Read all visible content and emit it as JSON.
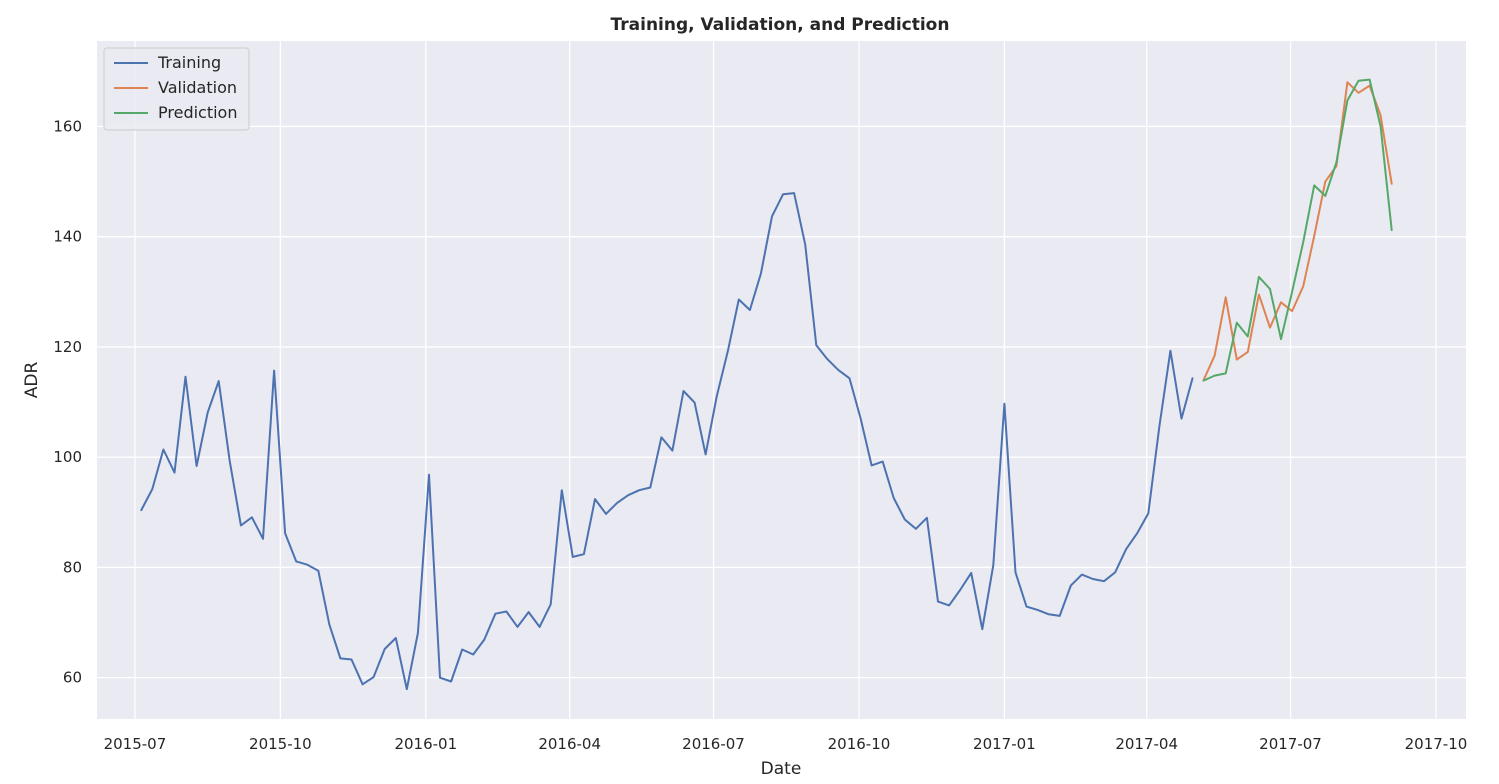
{
  "chart_data": {
    "type": "line",
    "title": "Training, Validation, and Prediction",
    "xlabel": "Date",
    "ylabel": "ADR",
    "x_axis_type": "date",
    "xlim": [
      "2015-06-07",
      "2017-10-20"
    ],
    "ylim": [
      52.5,
      175.5
    ],
    "x_ticks": [
      "2015-07",
      "2015-10",
      "2016-01",
      "2016-04",
      "2016-07",
      "2016-10",
      "2017-01",
      "2017-04",
      "2017-07",
      "2017-10"
    ],
    "x_tick_dates": [
      "2015-07-01",
      "2015-10-01",
      "2016-01-01",
      "2016-04-01",
      "2016-07-01",
      "2016-10-01",
      "2017-01-01",
      "2017-04-01",
      "2017-07-01",
      "2017-10-01"
    ],
    "y_ticks": [
      60,
      80,
      100,
      120,
      140,
      160
    ],
    "grid": true,
    "background": "#eaeaf2",
    "legend_position": "top-left",
    "series": [
      {
        "name": "Training",
        "color": "#4c72b0",
        "x": [
          "2015-07-05",
          "2015-07-12",
          "2015-07-19",
          "2015-07-26",
          "2015-08-02",
          "2015-08-09",
          "2015-08-16",
          "2015-08-23",
          "2015-08-30",
          "2015-09-06",
          "2015-09-13",
          "2015-09-20",
          "2015-09-27",
          "2015-10-04",
          "2015-10-11",
          "2015-10-18",
          "2015-10-25",
          "2015-11-01",
          "2015-11-08",
          "2015-11-15",
          "2015-11-22",
          "2015-11-29",
          "2015-12-06",
          "2015-12-13",
          "2015-12-20",
          "2015-12-27",
          "2016-01-03",
          "2016-01-10",
          "2016-01-17",
          "2016-01-24",
          "2016-01-31",
          "2016-02-07",
          "2016-02-14",
          "2016-02-21",
          "2016-02-28",
          "2016-03-06",
          "2016-03-13",
          "2016-03-20",
          "2016-03-27",
          "2016-04-03",
          "2016-04-10",
          "2016-04-17",
          "2016-04-24",
          "2016-05-01",
          "2016-05-08",
          "2016-05-15",
          "2016-05-22",
          "2016-05-29",
          "2016-06-05",
          "2016-06-12",
          "2016-06-19",
          "2016-06-26",
          "2016-07-03",
          "2016-07-10",
          "2016-07-17",
          "2016-07-24",
          "2016-07-31",
          "2016-08-07",
          "2016-08-14",
          "2016-08-21",
          "2016-08-28",
          "2016-09-04",
          "2016-09-11",
          "2016-09-18",
          "2016-09-25",
          "2016-10-02",
          "2016-10-09",
          "2016-10-16",
          "2016-10-23",
          "2016-10-30",
          "2016-11-06",
          "2016-11-13",
          "2016-11-20",
          "2016-11-27",
          "2016-12-04",
          "2016-12-11",
          "2016-12-18",
          "2016-12-25",
          "2017-01-01",
          "2017-01-08",
          "2017-01-15",
          "2017-01-22",
          "2017-01-29",
          "2017-02-05",
          "2017-02-12",
          "2017-02-19",
          "2017-02-26",
          "2017-03-05",
          "2017-03-12",
          "2017-03-19",
          "2017-03-26",
          "2017-04-02",
          "2017-04-09",
          "2017-04-16",
          "2017-04-23",
          "2017-04-30"
        ],
        "values": [
          90.4,
          94.2,
          101.4,
          97.2,
          114.6,
          98.4,
          108.1,
          113.8,
          99.2,
          87.6,
          89.1,
          85.2,
          115.7,
          86.2,
          81.1,
          80.5,
          79.4,
          69.6,
          63.5,
          63.3,
          58.8,
          60.1,
          65.2,
          67.2,
          57.9,
          68.1,
          96.8,
          60.0,
          59.3,
          65.1,
          64.2,
          66.9,
          71.6,
          72.0,
          69.2,
          71.9,
          69.2,
          73.3,
          94.0,
          81.9,
          82.4,
          92.4,
          89.7,
          91.7,
          93.1,
          94.0,
          94.5,
          103.6,
          101.2,
          112.0,
          109.9,
          100.5,
          111.0,
          119.2,
          128.6,
          126.7,
          133.3,
          143.7,
          147.7,
          147.9,
          138.6,
          120.3,
          117.8,
          115.8,
          114.3,
          107.1,
          98.5,
          99.2,
          92.6,
          88.7,
          87.0,
          89.0,
          73.8,
          73.1,
          75.9,
          79.0,
          68.8,
          80.4,
          109.7,
          79.1,
          72.9,
          72.3,
          71.5,
          71.2,
          76.7,
          78.7,
          77.9,
          77.5,
          79.1,
          83.3,
          86.2,
          89.8,
          105.5,
          119.3,
          107.0,
          114.3
        ]
      },
      {
        "name": "Validation",
        "color": "#dd8452",
        "x": [
          "2017-05-07",
          "2017-05-14",
          "2017-05-21",
          "2017-05-28",
          "2017-06-04",
          "2017-06-11",
          "2017-06-18",
          "2017-06-25",
          "2017-07-02",
          "2017-07-09",
          "2017-07-16",
          "2017-07-23",
          "2017-07-30",
          "2017-08-06",
          "2017-08-13",
          "2017-08-20",
          "2017-08-27",
          "2017-09-03"
        ],
        "values": [
          114.0,
          118.4,
          129.0,
          117.7,
          119.1,
          129.5,
          123.5,
          128.1,
          126.5,
          131.0,
          140.1,
          150.0,
          152.8,
          168.0,
          166.1,
          167.4,
          162.0,
          149.6
        ]
      },
      {
        "name": "Prediction",
        "color": "#55a868",
        "x": [
          "2017-05-07",
          "2017-05-14",
          "2017-05-21",
          "2017-05-28",
          "2017-06-04",
          "2017-06-11",
          "2017-06-18",
          "2017-06-25",
          "2017-07-02",
          "2017-07-09",
          "2017-07-16",
          "2017-07-23",
          "2017-07-30",
          "2017-08-06",
          "2017-08-13",
          "2017-08-20",
          "2017-08-27",
          "2017-09-03"
        ],
        "values": [
          113.9,
          114.8,
          115.2,
          124.4,
          121.9,
          132.7,
          130.5,
          121.4,
          130.0,
          139.0,
          149.3,
          147.4,
          153.5,
          164.7,
          168.3,
          168.5,
          160.0,
          141.2
        ]
      }
    ]
  }
}
